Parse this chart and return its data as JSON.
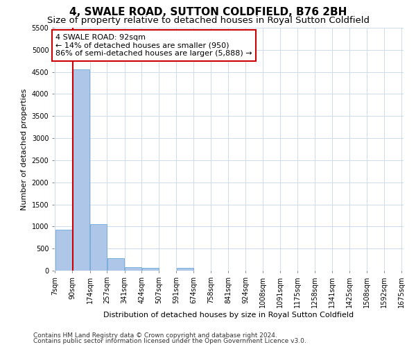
{
  "title": "4, SWALE ROAD, SUTTON COLDFIELD, B76 2BH",
  "subtitle": "Size of property relative to detached houses in Royal Sutton Coldfield",
  "xlabel": "Distribution of detached houses by size in Royal Sutton Coldfield",
  "ylabel": "Number of detached properties",
  "footnote1": "Contains HM Land Registry data © Crown copyright and database right 2024.",
  "footnote2": "Contains public sector information licensed under the Open Government Licence v3.0.",
  "annotation_title": "4 SWALE ROAD: 92sqm",
  "annotation_line1": "← 14% of detached houses are smaller (950)",
  "annotation_line2": "86% of semi-detached houses are larger (5,888) →",
  "property_size": 92,
  "bin_edges": [
    7,
    90,
    174,
    257,
    341,
    424,
    507,
    591,
    674,
    758,
    841,
    924,
    1008,
    1091,
    1175,
    1258,
    1341,
    1425,
    1508,
    1592,
    1675
  ],
  "bin_labels": [
    "7sqm",
    "90sqm",
    "174sqm",
    "257sqm",
    "341sqm",
    "424sqm",
    "507sqm",
    "591sqm",
    "674sqm",
    "758sqm",
    "841sqm",
    "924sqm",
    "1008sqm",
    "1091sqm",
    "1175sqm",
    "1258sqm",
    "1341sqm",
    "1425sqm",
    "1508sqm",
    "1592sqm",
    "1675sqm"
  ],
  "bar_heights": [
    920,
    4560,
    1060,
    290,
    80,
    60,
    0,
    60,
    0,
    0,
    0,
    0,
    0,
    0,
    0,
    0,
    0,
    0,
    0,
    0
  ],
  "bar_color": "#aec6e8",
  "bar_edge_color": "#5a9fd4",
  "highlight_color": "#cc0000",
  "annotation_box_color": "#cc0000",
  "background_color": "#ffffff",
  "grid_color": "#c8d4e8",
  "ylim": [
    0,
    5500
  ],
  "yticks": [
    0,
    500,
    1000,
    1500,
    2000,
    2500,
    3000,
    3500,
    4000,
    4500,
    5000,
    5500
  ],
  "title_fontsize": 11,
  "subtitle_fontsize": 9.5,
  "label_fontsize": 8,
  "tick_fontsize": 7,
  "annotation_fontsize": 8,
  "footnote_fontsize": 6.5
}
